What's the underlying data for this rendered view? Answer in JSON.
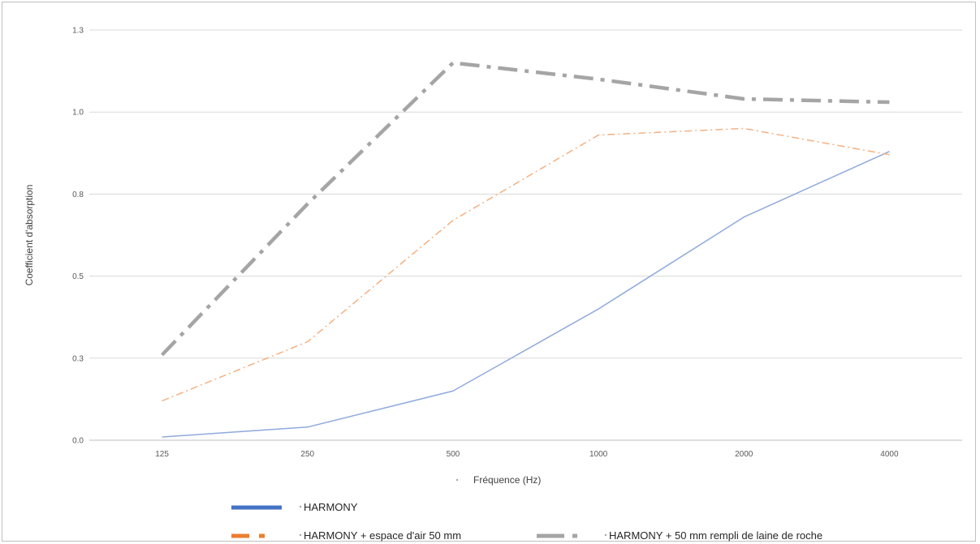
{
  "chart_data": {
    "type": "line",
    "title": "",
    "xlabel": "Fréquence (Hz)",
    "ylabel": "Coefficient d'absorption",
    "categories": [
      "125",
      "250",
      "500",
      "1000",
      "2000",
      "4000"
    ],
    "yticks": [
      "0.0",
      "0.3",
      "0.5",
      "0.8",
      "1.0",
      "1.3"
    ],
    "ylim": [
      0,
      1.25
    ],
    "grid": true,
    "legend_position": "bottom",
    "series": [
      {
        "name": "HARMONY",
        "values": [
          0.01,
          0.04,
          0.15,
          0.4,
          0.68,
          0.88
        ],
        "color": "#8faadc",
        "legend_color": "#4472c4",
        "dash": "solid"
      },
      {
        "name": "HARMONY + espace d'air 50 mm",
        "values": [
          0.12,
          0.3,
          0.67,
          0.93,
          0.95,
          0.87
        ],
        "color": "#f4b183",
        "legend_color": "#ed7d31",
        "dash": "dash-dot-thin"
      },
      {
        "name": "HARMONY + 50 mm rempli de laine de roche",
        "values": [
          0.26,
          0.72,
          1.15,
          1.1,
          1.04,
          1.03
        ],
        "color": "#a5a5a5",
        "legend_color": "#a5a5a5",
        "dash": "dash-dot-thick"
      }
    ]
  }
}
